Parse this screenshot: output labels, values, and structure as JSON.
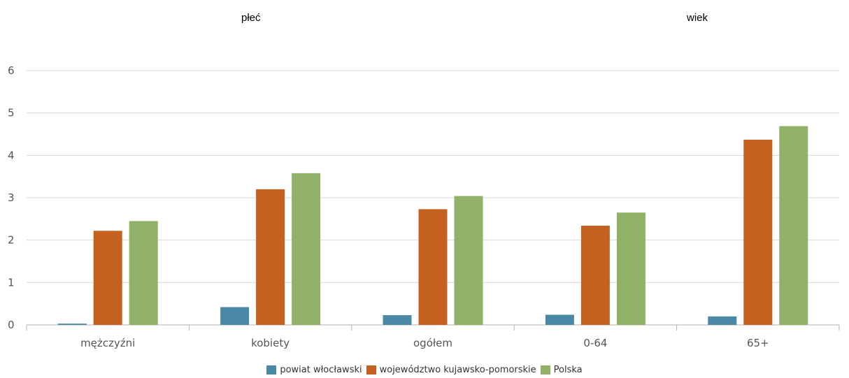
{
  "group_labels": {
    "left": "płeć",
    "right": "wiek"
  },
  "chart_data": {
    "type": "bar",
    "categories": [
      "mężczyźni",
      "kobiety",
      "ogółem",
      "0-64",
      "65+"
    ],
    "series": [
      {
        "name": "powiat włocławski",
        "color": "#4a88a5",
        "values": [
          0.03,
          0.42,
          0.23,
          0.24,
          0.2
        ]
      },
      {
        "name": "województwo kujawsko-pomorskie",
        "color": "#c5611f",
        "values": [
          2.22,
          3.2,
          2.73,
          2.34,
          4.37
        ]
      },
      {
        "name": "Polska",
        "color": "#92b168",
        "values": [
          2.45,
          3.58,
          3.04,
          2.65,
          4.69
        ]
      }
    ],
    "ylim": [
      0,
      6
    ],
    "yticks": [
      0,
      1,
      2,
      3,
      4,
      5,
      6
    ],
    "xlabel": "",
    "ylabel": "",
    "grid": true,
    "legend": "bottom"
  }
}
